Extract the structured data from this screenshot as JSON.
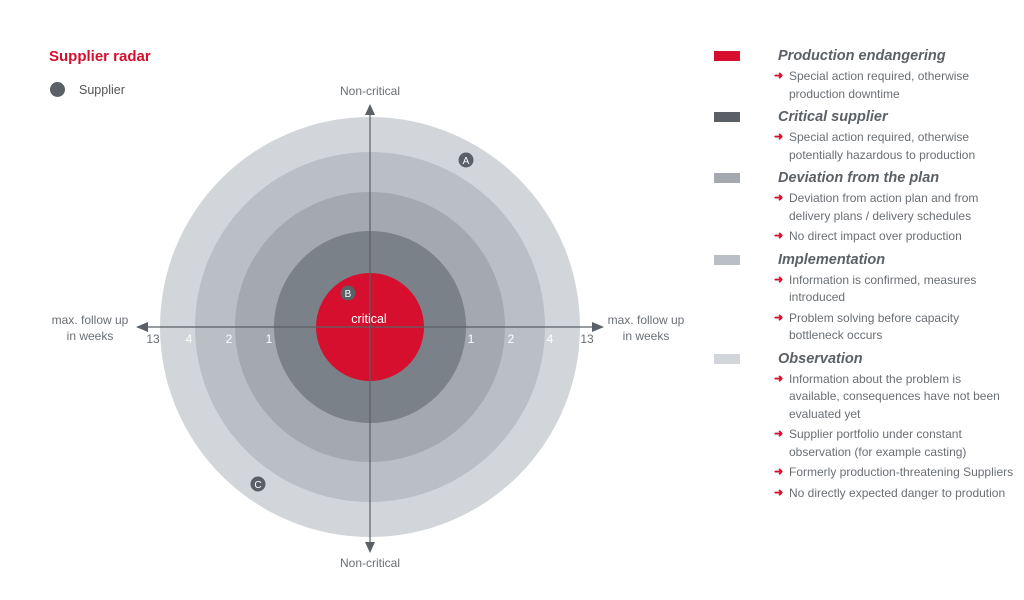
{
  "title": "Supplier radar",
  "key": {
    "label": "Supplier",
    "color": "#5a6066"
  },
  "axes": {
    "top": "Non-critical",
    "bottom": "Non-critical",
    "left": "max. follow up in weeks",
    "right": "max. follow up in weeks",
    "ticks_left": [
      "13",
      "4",
      "2",
      "1"
    ],
    "ticks_right": [
      "1",
      "2",
      "4",
      "13"
    ],
    "center_label": "critical"
  },
  "rings": [
    {
      "color": "#d2d6da"
    },
    {
      "color": "#b9bfc5"
    },
    {
      "color": "#a3a9af"
    },
    {
      "color": "#7b8188"
    },
    {
      "color": "#d50f2d"
    }
  ],
  "suppliers": [
    "A",
    "B",
    "C"
  ],
  "legend": [
    {
      "title": "Production endangering",
      "color": "#d50f2d",
      "items": [
        "Special action required, otherwise production downtime"
      ]
    },
    {
      "title": "Critical supplier",
      "color": "#5a6066",
      "items": [
        "Special action required, otherwise potentially hazardous to production"
      ]
    },
    {
      "title": "Deviation from the plan",
      "color": "#a3a9af",
      "items": [
        "Deviation from action plan and from delivery plans / delivery schedules",
        "No direct impact over production"
      ]
    },
    {
      "title": "Implementation",
      "color": "#b9bfc5",
      "items": [
        "Information is confirmed, measures introduced",
        "Problem solving before capacity bottleneck occurs"
      ]
    },
    {
      "title": "Observation",
      "color": "#d2d6da",
      "items": [
        "Information about the problem is available, consequences have not been evaluated yet",
        "Supplier portfolio under constant observation (for example casting)",
        "Formerly production-threatening Suppliers",
        "No directly expected danger to prodution"
      ]
    }
  ]
}
